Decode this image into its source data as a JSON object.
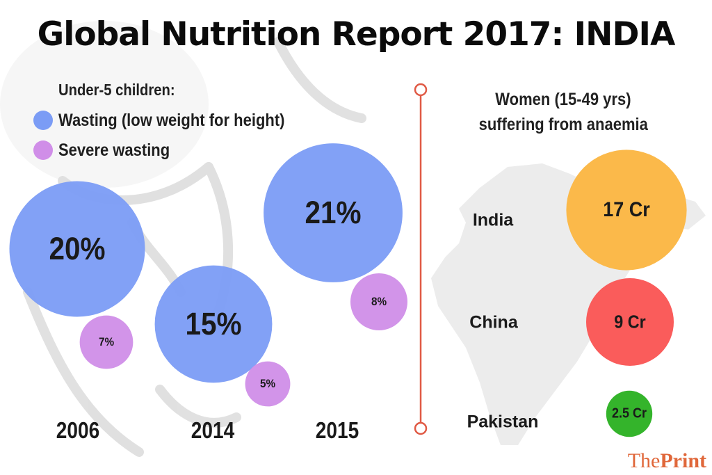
{
  "title": "Global Nutrition Report 2017: INDIA",
  "colors": {
    "wasting": "#7b9cf5",
    "severe_wasting": "#d08ee8",
    "divider": "#e05a45",
    "india": "#fbb94a",
    "china": "#fa5c5b",
    "pakistan": "#34b42b",
    "brand": "#e0673a",
    "map": "#eaeaea"
  },
  "left_panel": {
    "heading": "Under-5 children:",
    "legend": [
      {
        "label": "Wasting (low weight for height)",
        "color_key": "wasting"
      },
      {
        "label": "Severe wasting",
        "color_key": "severe_wasting"
      }
    ]
  },
  "right_panel": {
    "heading_line1": "Women (15-49 yrs)",
    "heading_line2": "suffering from anaemia"
  },
  "brand": {
    "part1": "The",
    "part2": "Print"
  },
  "chart_data": [
    {
      "type": "bubble",
      "title": "Under-5 children: wasting",
      "categories": [
        "2006",
        "2014",
        "2015"
      ],
      "series": [
        {
          "name": "Wasting (low weight for height)",
          "values": [
            20,
            15,
            21
          ],
          "labels": [
            "20%",
            "15%",
            "21%"
          ],
          "unit": "%"
        },
        {
          "name": "Severe wasting",
          "values": [
            7,
            5,
            8
          ],
          "labels": [
            "7%",
            "5%",
            "8%"
          ],
          "unit": "%"
        }
      ]
    },
    {
      "type": "bubble",
      "title": "Women (15-49 yrs) suffering from anaemia",
      "categories": [
        "India",
        "China",
        "Pakistan"
      ],
      "values": [
        17,
        9,
        2.5
      ],
      "labels": [
        "17 Cr",
        "9 Cr",
        "2.5 Cr"
      ],
      "unit": "Crore"
    }
  ]
}
